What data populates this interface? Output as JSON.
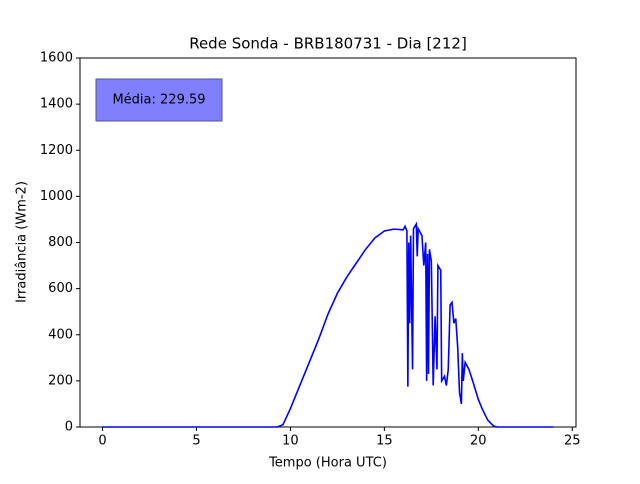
{
  "chart_data": {
    "type": "line",
    "title": "Rede Sonda - BRB180731 - Dia [212]",
    "xlabel": "Tempo (Hora UTC)",
    "ylabel": "Irradiância (Wm-2)",
    "annotation": "Média: 229.59",
    "xlim": [
      -1.2,
      25.2
    ],
    "ylim": [
      0,
      1600
    ],
    "xticks": [
      0,
      5,
      10,
      15,
      20,
      25
    ],
    "yticks": [
      0,
      200,
      400,
      600,
      800,
      1000,
      1200,
      1400,
      1600
    ],
    "series": [
      {
        "color": "#0000ff",
        "x": [
          0,
          9.3,
          9.6,
          10,
          10.5,
          11,
          11.5,
          12,
          12.5,
          13,
          13.5,
          14,
          14.5,
          15,
          15.5,
          16,
          16.1,
          16.2,
          16.25,
          16.3,
          16.35,
          16.4,
          16.5,
          16.55,
          16.7,
          16.75,
          16.8,
          17,
          17.1,
          17.2,
          17.25,
          17.3,
          17.35,
          17.4,
          17.5,
          17.6,
          17.7,
          17.8,
          17.85,
          18,
          18.05,
          18.2,
          18.3,
          18.4,
          18.5,
          18.6,
          18.7,
          18.8,
          18.9,
          19,
          19.1,
          19.15,
          19.2,
          19.3,
          19.5,
          19.7,
          20,
          20.2,
          20.5,
          20.8,
          21,
          24
        ],
        "values": [
          0,
          0,
          10,
          80,
          180,
          280,
          380,
          490,
          580,
          650,
          710,
          770,
          820,
          850,
          858,
          855,
          870,
          850,
          175,
          800,
          450,
          830,
          250,
          860,
          880,
          740,
          860,
          830,
          700,
          800,
          200,
          750,
          230,
          770,
          720,
          180,
          480,
          250,
          700,
          680,
          200,
          220,
          180,
          250,
          530,
          540,
          450,
          470,
          350,
          150,
          100,
          320,
          200,
          280,
          250,
          200,
          120,
          80,
          30,
          5,
          0,
          0
        ]
      }
    ]
  }
}
